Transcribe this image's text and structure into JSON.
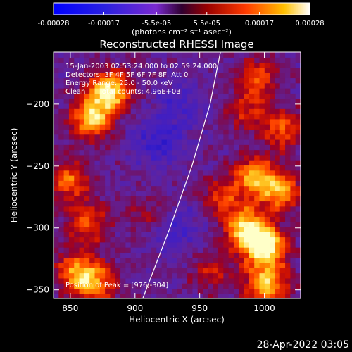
{
  "chart_data": {
    "type": "heatmap",
    "title": "Reconstructed RHESSI Image",
    "xlabel": "Heliocentric X (arcsec)",
    "ylabel": "Heliocentric Y (arcsec)",
    "xlim": [
      837,
      1028
    ],
    "ylim": [
      -357,
      -158
    ],
    "x_ticks": [
      850,
      900,
      950,
      1000
    ],
    "y_ticks": [
      -200,
      -250,
      -300,
      -350
    ],
    "colorbar": {
      "range": [
        -0.00028,
        0.00028
      ],
      "tick_labels": [
        "-0.00028",
        "-0.00017",
        "-5.5e-05",
        "5.5e-05",
        "0.00017",
        "0.00028"
      ],
      "tick_values": [
        -0.00028,
        -0.00017,
        -5.5e-05,
        5.5e-05,
        0.00017,
        0.00028
      ],
      "units": "(photons cm⁻² s⁻¹ asec⁻²)"
    },
    "annotations": [
      "15-Jan-2003 02:53:24.000 to 02:59:24.000",
      "Detectors: 3F 4F 5F 6F 7F 8F, Att 0",
      "Energy Range: 25.0 - 50.0 keV",
      "Clean      Total counts: 4.96E+03"
    ],
    "peak_label": "Position of Peak = [976,-304]",
    "limb": [
      [
        906,
        -357
      ],
      [
        927,
        -300
      ],
      [
        944,
        -250
      ],
      [
        958,
        -200
      ],
      [
        966,
        -158
      ]
    ],
    "bright_regions": [
      {
        "x": 880,
        "y": -190,
        "level": 1.0
      },
      {
        "x": 866,
        "y": -212,
        "level": 0.8
      },
      {
        "x": 850,
        "y": -262,
        "level": 0.6
      },
      {
        "x": 864,
        "y": -296,
        "level": 0.55
      },
      {
        "x": 855,
        "y": -335,
        "level": 0.7
      },
      {
        "x": 870,
        "y": -345,
        "level": 0.6
      },
      {
        "x": 912,
        "y": -290,
        "level": 0.3
      },
      {
        "x": 1000,
        "y": -315,
        "level": 1.05
      },
      {
        "x": 986,
        "y": -300,
        "level": 0.9
      },
      {
        "x": 1012,
        "y": -270,
        "level": 0.75
      },
      {
        "x": 992,
        "y": -258,
        "level": 0.7
      },
      {
        "x": 968,
        "y": -275,
        "level": 0.45
      },
      {
        "x": 1002,
        "y": -345,
        "level": 0.85
      },
      {
        "x": 1014,
        "y": -220,
        "level": 0.55
      },
      {
        "x": 995,
        "y": -178,
        "level": 0.5
      },
      {
        "x": 985,
        "y": -205,
        "level": 0.4
      },
      {
        "x": 960,
        "y": -335,
        "level": 0.35
      }
    ],
    "dark_regions": [
      {
        "x": 918,
        "y": -230,
        "level": 0.35
      },
      {
        "x": 930,
        "y": -300,
        "level": 0.3
      },
      {
        "x": 935,
        "y": -200,
        "level": 0.25
      }
    ]
  },
  "timestamp": "28-Apr-2022 03:05"
}
